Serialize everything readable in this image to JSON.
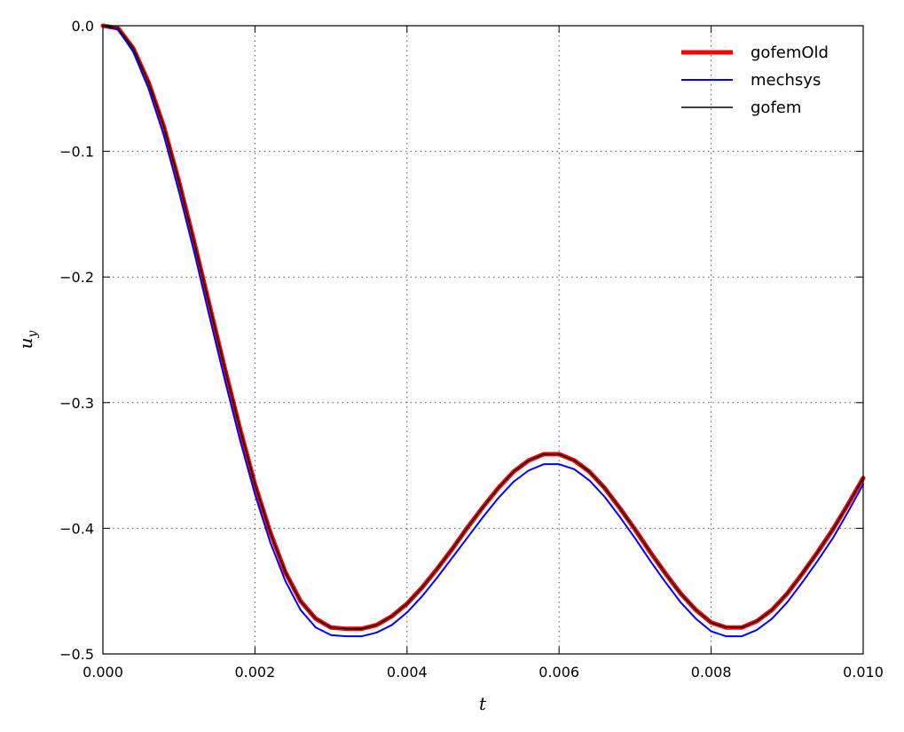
{
  "chart_data": {
    "type": "line",
    "title": "",
    "xlabel": "t",
    "ylabel_base": "u",
    "ylabel_sub": "y",
    "xlim": [
      0.0,
      0.01
    ],
    "ylim": [
      -0.5,
      0.0
    ],
    "xticks": [
      0.0,
      0.002,
      0.004,
      0.006,
      0.008,
      0.01
    ],
    "xtick_labels": [
      "0.000",
      "0.002",
      "0.004",
      "0.006",
      "0.008",
      "0.010"
    ],
    "yticks": [
      0.0,
      -0.1,
      -0.2,
      -0.3,
      -0.4,
      -0.5
    ],
    "ytick_labels": [
      "0.0",
      "−0.1",
      "−0.2",
      "−0.3",
      "−0.4",
      "−0.5"
    ],
    "grid": true,
    "legend_position": "top-right",
    "x": [
      0.0,
      0.0002,
      0.0004,
      0.0006,
      0.0008,
      0.001,
      0.0012,
      0.0014,
      0.0016,
      0.0018,
      0.002,
      0.0022,
      0.0024,
      0.0026,
      0.0028,
      0.003,
      0.0032,
      0.0034,
      0.0036,
      0.0038,
      0.004,
      0.0042,
      0.0044,
      0.0046,
      0.0048,
      0.005,
      0.0052,
      0.0054,
      0.0056,
      0.0058,
      0.006,
      0.0062,
      0.0064,
      0.0066,
      0.0068,
      0.007,
      0.0072,
      0.0074,
      0.0076,
      0.0078,
      0.008,
      0.0082,
      0.0084,
      0.0086,
      0.0088,
      0.009,
      0.0092,
      0.0094,
      0.0096,
      0.0098,
      0.01
    ],
    "series": [
      {
        "name": "gofemOld",
        "color": "#ff0000",
        "values": [
          0.0,
          -0.002,
          -0.018,
          -0.045,
          -0.08,
          -0.124,
          -0.172,
          -0.222,
          -0.272,
          -0.32,
          -0.365,
          -0.403,
          -0.435,
          -0.458,
          -0.472,
          -0.479,
          -0.48,
          -0.48,
          -0.477,
          -0.47,
          -0.46,
          -0.447,
          -0.432,
          -0.416,
          -0.399,
          -0.383,
          -0.368,
          -0.355,
          -0.346,
          -0.341,
          -0.341,
          -0.346,
          -0.355,
          -0.368,
          -0.384,
          -0.401,
          -0.419,
          -0.436,
          -0.452,
          -0.465,
          -0.475,
          -0.479,
          -0.479,
          -0.474,
          -0.465,
          -0.452,
          -0.436,
          -0.419,
          -0.401,
          -0.381,
          -0.36
        ]
      },
      {
        "name": "mechsys",
        "color": "#0000ff",
        "values": [
          0.0,
          -0.003,
          -0.021,
          -0.05,
          -0.087,
          -0.132,
          -0.18,
          -0.231,
          -0.281,
          -0.329,
          -0.373,
          -0.411,
          -0.442,
          -0.465,
          -0.479,
          -0.485,
          -0.486,
          -0.486,
          -0.483,
          -0.477,
          -0.467,
          -0.454,
          -0.439,
          -0.423,
          -0.407,
          -0.391,
          -0.376,
          -0.363,
          -0.354,
          -0.349,
          -0.349,
          -0.353,
          -0.362,
          -0.375,
          -0.391,
          -0.408,
          -0.426,
          -0.443,
          -0.459,
          -0.472,
          -0.482,
          -0.486,
          -0.486,
          -0.481,
          -0.472,
          -0.459,
          -0.443,
          -0.426,
          -0.408,
          -0.387,
          -0.365
        ]
      },
      {
        "name": "gofem",
        "color": "#000000",
        "values": [
          0.0,
          -0.002,
          -0.018,
          -0.045,
          -0.08,
          -0.124,
          -0.172,
          -0.222,
          -0.272,
          -0.32,
          -0.365,
          -0.403,
          -0.435,
          -0.458,
          -0.472,
          -0.479,
          -0.48,
          -0.48,
          -0.477,
          -0.47,
          -0.46,
          -0.447,
          -0.432,
          -0.416,
          -0.399,
          -0.383,
          -0.368,
          -0.355,
          -0.346,
          -0.341,
          -0.341,
          -0.346,
          -0.355,
          -0.368,
          -0.384,
          -0.401,
          -0.419,
          -0.436,
          -0.452,
          -0.465,
          -0.475,
          -0.479,
          -0.479,
          -0.474,
          -0.465,
          -0.452,
          -0.436,
          -0.419,
          -0.401,
          -0.381,
          -0.36
        ]
      }
    ]
  }
}
